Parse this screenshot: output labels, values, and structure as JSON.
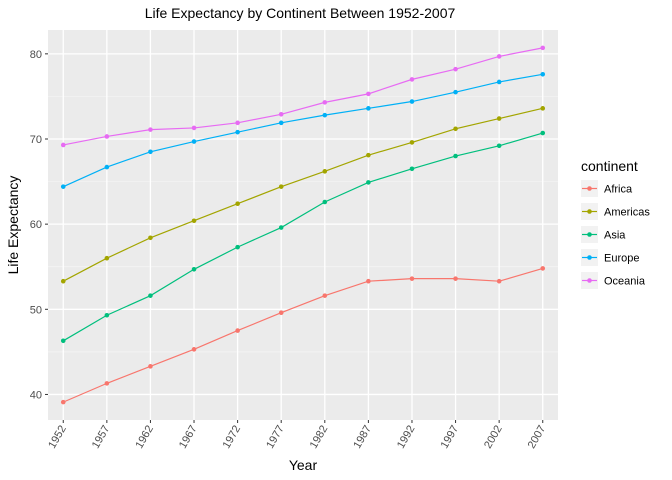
{
  "chart_data": {
    "type": "line",
    "title": "Life Expectancy by Continent Between 1952-2007",
    "xlabel": "Year",
    "ylabel": "Life Expectancy",
    "x": [
      1952,
      1957,
      1962,
      1967,
      1972,
      1977,
      1982,
      1987,
      1992,
      1997,
      2002,
      2007
    ],
    "xlim": [
      1950.25,
      2008.75
    ],
    "ylim": [
      37.0,
      82.8
    ],
    "yticks": [
      40,
      50,
      60,
      70,
      80
    ],
    "grid": true,
    "legend": {
      "title": "continent",
      "position": "right"
    },
    "series": [
      {
        "name": "Africa",
        "color": "#F8766D",
        "values": [
          39.1,
          41.3,
          43.3,
          45.3,
          47.5,
          49.6,
          51.6,
          53.3,
          53.6,
          53.6,
          53.3,
          54.8
        ]
      },
      {
        "name": "Americas",
        "color": "#A3A500",
        "values": [
          53.3,
          56.0,
          58.4,
          60.4,
          62.4,
          64.4,
          66.2,
          68.1,
          69.6,
          71.2,
          72.4,
          73.6
        ]
      },
      {
        "name": "Asia",
        "color": "#00BF7D",
        "values": [
          46.3,
          49.3,
          51.6,
          54.7,
          57.3,
          59.6,
          62.6,
          64.9,
          66.5,
          68.0,
          69.2,
          70.7
        ]
      },
      {
        "name": "Europe",
        "color": "#00B0F6",
        "values": [
          64.4,
          66.7,
          68.5,
          69.7,
          70.8,
          71.9,
          72.8,
          73.6,
          74.4,
          75.5,
          76.7,
          77.6
        ]
      },
      {
        "name": "Oceania",
        "color": "#E76BF3",
        "values": [
          69.3,
          70.3,
          71.1,
          71.3,
          71.9,
          72.9,
          74.3,
          75.3,
          77.0,
          78.2,
          79.7,
          80.7
        ]
      }
    ]
  }
}
